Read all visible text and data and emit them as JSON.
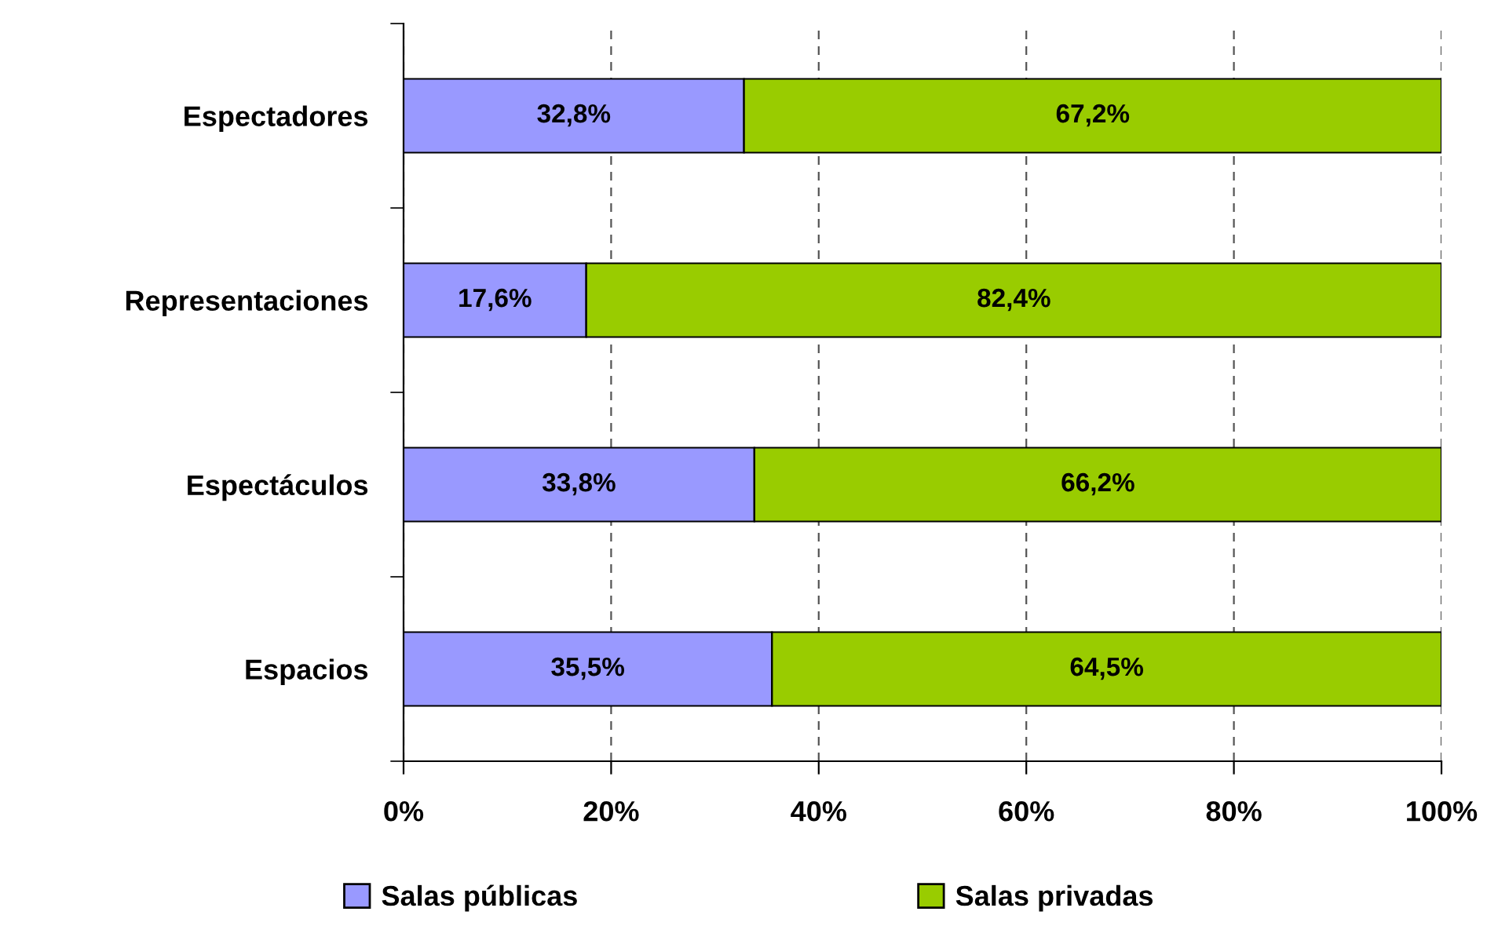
{
  "chart_data": {
    "type": "bar",
    "orientation": "horizontal",
    "stacked": true,
    "categories": [
      "Espectadores",
      "Representaciones",
      "Espectáculos",
      "Espacios"
    ],
    "series": [
      {
        "name": "Salas públicas",
        "color": "#9999ff",
        "values": [
          32.8,
          17.6,
          33.8,
          35.5
        ],
        "value_labels": [
          "32,8%",
          "17,6%",
          "33,8%",
          "35,5%"
        ]
      },
      {
        "name": "Salas privadas",
        "color": "#99cc00",
        "values": [
          67.2,
          82.4,
          66.2,
          64.5
        ],
        "value_labels": [
          "67,2%",
          "82,4%",
          "66,2%",
          "64,5%"
        ]
      }
    ],
    "xlim": [
      0,
      100
    ],
    "xticks": [
      {
        "value": 0,
        "label": "0%"
      },
      {
        "value": 20,
        "label": "20%"
      },
      {
        "value": 40,
        "label": "40%"
      },
      {
        "value": 60,
        "label": "60%"
      },
      {
        "value": 80,
        "label": "80%"
      },
      {
        "value": 100,
        "label": "100%"
      }
    ],
    "grid": "x",
    "line_style": "dashed",
    "legend": "bottom"
  }
}
